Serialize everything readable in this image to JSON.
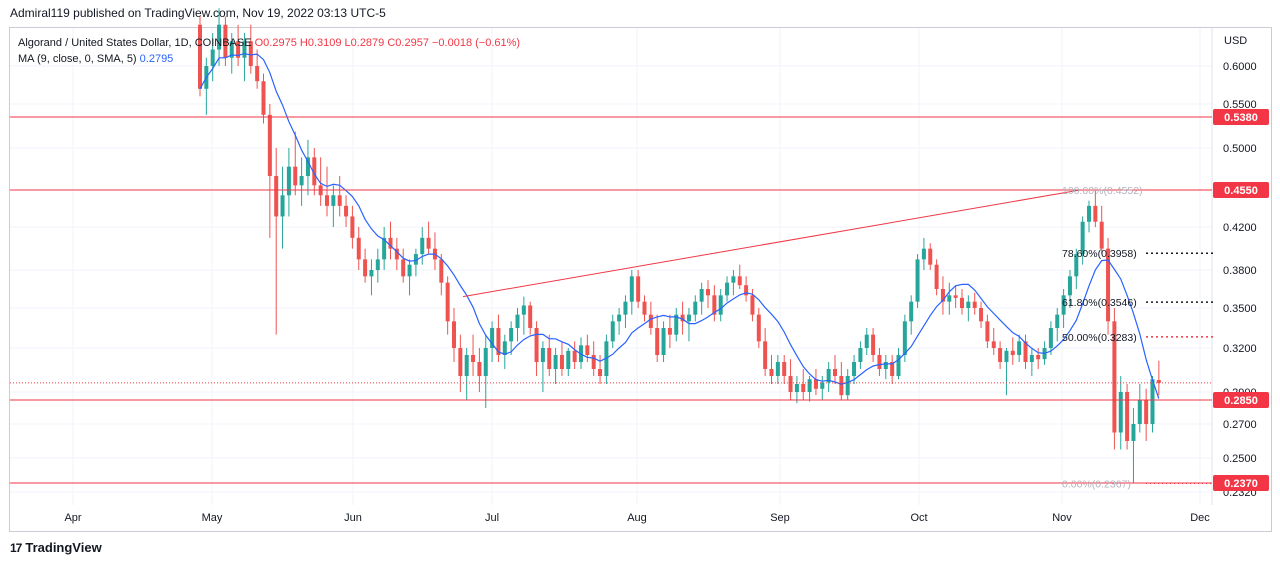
{
  "header": {
    "publisher": "Admiral119 published on TradingView.com, Nov 19, 2022 03:13 UTC-5"
  },
  "legend": {
    "symbol": "Algorand / United States Dollar, 1D, COINBASE",
    "ohlc": "O0.2975 H0.3109 L0.2879 C0.2957 −0.0018 (−0.61%)",
    "ma": "MA (9, close, 0, SMA, 5)",
    "ma_value": "0.2795"
  },
  "footer": {
    "brand": "TradingView",
    "logo_mark": "17"
  },
  "colors": {
    "up": "#26a69a",
    "down": "#ef5350",
    "ma": "#2962ff",
    "level": "#f23645",
    "grid": "#f0f3fa",
    "text": "#131722"
  },
  "chart_data": {
    "type": "candlestick",
    "currency": "USD",
    "x_ticks": [
      "Apr",
      "May",
      "Jun",
      "Jul",
      "Aug",
      "Sep",
      "Oct",
      "Nov",
      "Dec"
    ],
    "y_ticks": [
      "0.6000",
      "0.5500",
      "0.5000",
      "0.4200",
      "0.3800",
      "0.3500",
      "0.3200",
      "0.2900",
      "0.2700",
      "0.2500",
      "0.2320"
    ],
    "horizontal_levels": [
      {
        "value": 0.538,
        "label": "0.5380"
      },
      {
        "value": 0.455,
        "label": "0.4550"
      },
      {
        "value": 0.285,
        "label": "0.2850"
      },
      {
        "value": 0.237,
        "label": "0.2370"
      }
    ],
    "fib_levels": [
      {
        "label": "100.00%(0.4552)",
        "value": 0.4552,
        "dotted_extension": false
      },
      {
        "label": "78.60%(0.3958)",
        "value": 0.3958,
        "dotted_extension": true
      },
      {
        "label": "61.80%(0.3546)",
        "value": 0.3546,
        "dotted_extension": true
      },
      {
        "label": "50.00%(0.3283)",
        "value": 0.3283,
        "dotted_extension": true
      },
      {
        "label": "0.00%(0.2367)",
        "value": 0.2367,
        "dotted_extension": false
      }
    ],
    "last_close": 0.2957,
    "trendline": {
      "from": [
        "Jun 23",
        0.359
      ],
      "to": [
        "Nov 4",
        0.455
      ]
    },
    "candles_ohlc": [
      [
        0.65,
        0.66,
        0.56,
        0.57
      ],
      [
        0.57,
        0.61,
        0.54,
        0.6
      ],
      [
        0.6,
        0.64,
        0.58,
        0.62
      ],
      [
        0.62,
        0.67,
        0.6,
        0.65
      ],
      [
        0.65,
        0.66,
        0.6,
        0.61
      ],
      [
        0.61,
        0.64,
        0.59,
        0.63
      ],
      [
        0.63,
        0.65,
        0.6,
        0.61
      ],
      [
        0.61,
        0.64,
        0.58,
        0.63
      ],
      [
        0.63,
        0.65,
        0.59,
        0.6
      ],
      [
        0.6,
        0.62,
        0.57,
        0.58
      ],
      [
        0.58,
        0.59,
        0.53,
        0.54
      ],
      [
        0.54,
        0.55,
        0.41,
        0.47
      ],
      [
        0.47,
        0.5,
        0.33,
        0.43
      ],
      [
        0.43,
        0.48,
        0.4,
        0.45
      ],
      [
        0.45,
        0.5,
        0.43,
        0.48
      ],
      [
        0.48,
        0.52,
        0.45,
        0.46
      ],
      [
        0.46,
        0.49,
        0.44,
        0.47
      ],
      [
        0.47,
        0.51,
        0.45,
        0.49
      ],
      [
        0.49,
        0.5,
        0.45,
        0.46
      ],
      [
        0.46,
        0.49,
        0.44,
        0.45
      ],
      [
        0.45,
        0.48,
        0.43,
        0.44
      ],
      [
        0.44,
        0.46,
        0.42,
        0.45
      ],
      [
        0.45,
        0.47,
        0.43,
        0.44
      ],
      [
        0.44,
        0.45,
        0.42,
        0.43
      ],
      [
        0.43,
        0.44,
        0.4,
        0.41
      ],
      [
        0.41,
        0.42,
        0.38,
        0.39
      ],
      [
        0.39,
        0.4,
        0.37,
        0.375
      ],
      [
        0.375,
        0.39,
        0.36,
        0.38
      ],
      [
        0.38,
        0.4,
        0.37,
        0.39
      ],
      [
        0.39,
        0.42,
        0.38,
        0.41
      ],
      [
        0.41,
        0.425,
        0.39,
        0.4
      ],
      [
        0.4,
        0.41,
        0.38,
        0.39
      ],
      [
        0.39,
        0.4,
        0.37,
        0.375
      ],
      [
        0.375,
        0.39,
        0.36,
        0.385
      ],
      [
        0.385,
        0.4,
        0.375,
        0.395
      ],
      [
        0.395,
        0.42,
        0.385,
        0.41
      ],
      [
        0.41,
        0.425,
        0.395,
        0.4
      ],
      [
        0.4,
        0.415,
        0.38,
        0.39
      ],
      [
        0.39,
        0.395,
        0.36,
        0.37
      ],
      [
        0.37,
        0.375,
        0.33,
        0.34
      ],
      [
        0.34,
        0.35,
        0.31,
        0.32
      ],
      [
        0.32,
        0.33,
        0.29,
        0.3
      ],
      [
        0.3,
        0.32,
        0.285,
        0.315
      ],
      [
        0.315,
        0.33,
        0.3,
        0.31
      ],
      [
        0.31,
        0.32,
        0.29,
        0.3
      ],
      [
        0.3,
        0.33,
        0.28,
        0.32
      ],
      [
        0.32,
        0.34,
        0.31,
        0.335
      ],
      [
        0.335,
        0.345,
        0.31,
        0.315
      ],
      [
        0.315,
        0.33,
        0.305,
        0.325
      ],
      [
        0.325,
        0.34,
        0.315,
        0.335
      ],
      [
        0.335,
        0.35,
        0.325,
        0.345
      ],
      [
        0.345,
        0.359,
        0.33,
        0.352
      ],
      [
        0.352,
        0.355,
        0.33,
        0.335
      ],
      [
        0.335,
        0.34,
        0.3,
        0.31
      ],
      [
        0.31,
        0.325,
        0.29,
        0.32
      ],
      [
        0.32,
        0.33,
        0.3,
        0.305
      ],
      [
        0.305,
        0.32,
        0.295,
        0.315
      ],
      [
        0.315,
        0.325,
        0.3,
        0.305
      ],
      [
        0.305,
        0.32,
        0.3,
        0.318
      ],
      [
        0.318,
        0.325,
        0.305,
        0.31
      ],
      [
        0.31,
        0.328,
        0.305,
        0.322
      ],
      [
        0.322,
        0.33,
        0.31,
        0.315
      ],
      [
        0.315,
        0.325,
        0.3,
        0.305
      ],
      [
        0.305,
        0.315,
        0.295,
        0.3
      ],
      [
        0.3,
        0.33,
        0.295,
        0.325
      ],
      [
        0.325,
        0.345,
        0.32,
        0.34
      ],
      [
        0.34,
        0.35,
        0.33,
        0.345
      ],
      [
        0.345,
        0.36,
        0.335,
        0.355
      ],
      [
        0.355,
        0.38,
        0.345,
        0.375
      ],
      [
        0.375,
        0.38,
        0.35,
        0.355
      ],
      [
        0.355,
        0.36,
        0.34,
        0.345
      ],
      [
        0.345,
        0.355,
        0.33,
        0.335
      ],
      [
        0.335,
        0.345,
        0.31,
        0.315
      ],
      [
        0.315,
        0.34,
        0.31,
        0.335
      ],
      [
        0.335,
        0.345,
        0.32,
        0.33
      ],
      [
        0.33,
        0.35,
        0.325,
        0.345
      ],
      [
        0.345,
        0.355,
        0.33,
        0.34
      ],
      [
        0.34,
        0.35,
        0.325,
        0.345
      ],
      [
        0.345,
        0.36,
        0.34,
        0.355
      ],
      [
        0.355,
        0.37,
        0.345,
        0.365
      ],
      [
        0.365,
        0.372,
        0.35,
        0.36
      ],
      [
        0.36,
        0.368,
        0.34,
        0.345
      ],
      [
        0.345,
        0.365,
        0.34,
        0.36
      ],
      [
        0.36,
        0.375,
        0.355,
        0.37
      ],
      [
        0.37,
        0.38,
        0.36,
        0.375
      ],
      [
        0.375,
        0.385,
        0.365,
        0.368
      ],
      [
        0.368,
        0.375,
        0.355,
        0.36
      ],
      [
        0.36,
        0.365,
        0.34,
        0.345
      ],
      [
        0.345,
        0.35,
        0.32,
        0.325
      ],
      [
        0.325,
        0.335,
        0.3,
        0.305
      ],
      [
        0.305,
        0.315,
        0.295,
        0.3
      ],
      [
        0.3,
        0.315,
        0.295,
        0.31
      ],
      [
        0.31,
        0.315,
        0.295,
        0.3
      ],
      [
        0.3,
        0.312,
        0.285,
        0.29
      ],
      [
        0.29,
        0.3,
        0.283,
        0.295
      ],
      [
        0.295,
        0.305,
        0.285,
        0.29
      ],
      [
        0.29,
        0.3,
        0.284,
        0.298
      ],
      [
        0.298,
        0.305,
        0.288,
        0.292
      ],
      [
        0.292,
        0.3,
        0.285,
        0.296
      ],
      [
        0.296,
        0.31,
        0.29,
        0.305
      ],
      [
        0.305,
        0.315,
        0.295,
        0.3
      ],
      [
        0.3,
        0.31,
        0.285,
        0.288
      ],
      [
        0.288,
        0.305,
        0.285,
        0.3
      ],
      [
        0.3,
        0.315,
        0.295,
        0.31
      ],
      [
        0.31,
        0.325,
        0.305,
        0.32
      ],
      [
        0.32,
        0.335,
        0.315,
        0.33
      ],
      [
        0.33,
        0.335,
        0.31,
        0.315
      ],
      [
        0.315,
        0.32,
        0.3,
        0.305
      ],
      [
        0.305,
        0.315,
        0.298,
        0.31
      ],
      [
        0.31,
        0.315,
        0.295,
        0.3
      ],
      [
        0.3,
        0.32,
        0.298,
        0.315
      ],
      [
        0.315,
        0.345,
        0.31,
        0.34
      ],
      [
        0.34,
        0.36,
        0.33,
        0.355
      ],
      [
        0.355,
        0.395,
        0.35,
        0.39
      ],
      [
        0.39,
        0.41,
        0.38,
        0.4
      ],
      [
        0.4,
        0.405,
        0.38,
        0.385
      ],
      [
        0.385,
        0.39,
        0.36,
        0.365
      ],
      [
        0.365,
        0.375,
        0.345,
        0.355
      ],
      [
        0.355,
        0.37,
        0.345,
        0.36
      ],
      [
        0.36,
        0.368,
        0.35,
        0.358
      ],
      [
        0.358,
        0.365,
        0.345,
        0.35
      ],
      [
        0.35,
        0.36,
        0.34,
        0.355
      ],
      [
        0.355,
        0.362,
        0.345,
        0.35
      ],
      [
        0.35,
        0.355,
        0.335,
        0.34
      ],
      [
        0.34,
        0.345,
        0.32,
        0.325
      ],
      [
        0.325,
        0.335,
        0.315,
        0.32
      ],
      [
        0.32,
        0.325,
        0.305,
        0.31
      ],
      [
        0.31,
        0.32,
        0.288,
        0.318
      ],
      [
        0.318,
        0.328,
        0.308,
        0.315
      ],
      [
        0.315,
        0.33,
        0.31,
        0.325
      ],
      [
        0.325,
        0.33,
        0.305,
        0.31
      ],
      [
        0.31,
        0.32,
        0.3,
        0.315
      ],
      [
        0.315,
        0.32,
        0.305,
        0.312
      ],
      [
        0.312,
        0.325,
        0.308,
        0.32
      ],
      [
        0.32,
        0.34,
        0.315,
        0.335
      ],
      [
        0.335,
        0.35,
        0.325,
        0.345
      ],
      [
        0.345,
        0.365,
        0.335,
        0.36
      ],
      [
        0.36,
        0.38,
        0.35,
        0.375
      ],
      [
        0.375,
        0.4,
        0.365,
        0.395
      ],
      [
        0.395,
        0.43,
        0.385,
        0.425
      ],
      [
        0.425,
        0.445,
        0.415,
        0.44
      ],
      [
        0.44,
        0.455,
        0.42,
        0.425
      ],
      [
        0.425,
        0.44,
        0.395,
        0.4
      ],
      [
        0.4,
        0.41,
        0.33,
        0.34
      ],
      [
        0.34,
        0.35,
        0.255,
        0.265
      ],
      [
        0.265,
        0.3,
        0.255,
        0.29
      ],
      [
        0.29,
        0.295,
        0.255,
        0.26
      ],
      [
        0.26,
        0.28,
        0.237,
        0.27
      ],
      [
        0.27,
        0.295,
        0.265,
        0.285
      ],
      [
        0.285,
        0.292,
        0.26,
        0.27
      ],
      [
        0.27,
        0.3,
        0.265,
        0.298
      ],
      [
        0.2975,
        0.3109,
        0.2879,
        0.2957
      ]
    ]
  }
}
